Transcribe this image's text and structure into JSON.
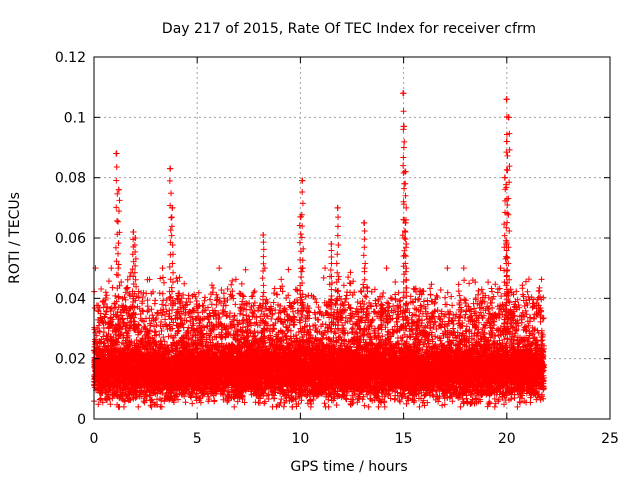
{
  "chart_data": {
    "type": "scatter",
    "title": "Day 217 of 2015, Rate Of TEC Index for receiver cfrm",
    "xlabel": "GPS time / hours",
    "ylabel": "ROTI / TECUs",
    "xlim": [
      0,
      25
    ],
    "ylim": [
      0,
      0.12
    ],
    "x_ticks": [
      "0",
      "5",
      "10",
      "15",
      "20",
      "25"
    ],
    "y_ticks": [
      "0",
      "0.02",
      "0.04",
      "0.06",
      "0.08",
      "0.1",
      "0.12"
    ],
    "x_tick_values": [
      0,
      5,
      10,
      15,
      20,
      25
    ],
    "y_tick_values": [
      0,
      0.02,
      0.04,
      0.06,
      0.08,
      0.1,
      0.12
    ],
    "grid": true,
    "marker": "+",
    "color": "#ff0000",
    "data_extent_x": [
      0,
      21.8
    ],
    "spikes": [
      {
        "x": 1.1,
        "y": 0.088
      },
      {
        "x": 1.2,
        "y": 0.076
      },
      {
        "x": 1.9,
        "y": 0.062
      },
      {
        "x": 2.0,
        "y": 0.06
      },
      {
        "x": 3.7,
        "y": 0.083
      },
      {
        "x": 3.8,
        "y": 0.07
      },
      {
        "x": 8.2,
        "y": 0.061
      },
      {
        "x": 10.1,
        "y": 0.079
      },
      {
        "x": 10.0,
        "y": 0.067
      },
      {
        "x": 11.5,
        "y": 0.058
      },
      {
        "x": 11.8,
        "y": 0.07
      },
      {
        "x": 13.1,
        "y": 0.065
      },
      {
        "x": 15.0,
        "y": 0.108
      },
      {
        "x": 15.0,
        "y": 0.097
      },
      {
        "x": 15.1,
        "y": 0.082
      },
      {
        "x": 15.1,
        "y": 0.065
      },
      {
        "x": 20.0,
        "y": 0.106
      },
      {
        "x": 20.1,
        "y": 0.1
      },
      {
        "x": 20.0,
        "y": 0.092
      },
      {
        "x": 19.9,
        "y": 0.08
      },
      {
        "x": 20.0,
        "y": 0.058
      }
    ]
  }
}
